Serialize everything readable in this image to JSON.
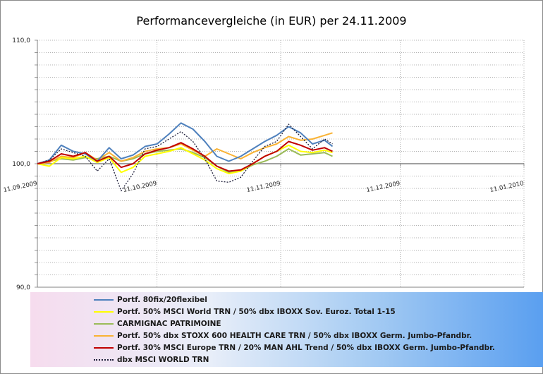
{
  "chart_data": {
    "type": "line",
    "title": "Performancevergleiche (in EUR) per 24.11.2009",
    "ylim": [
      90,
      110
    ],
    "y_ticks": [
      "90,0",
      "100,0",
      "110,0"
    ],
    "x_ticks": [
      "11.09.2009",
      "11.10.2009",
      "11.11.2009",
      "11.12.2009",
      "11.01.2010"
    ],
    "grid": "on",
    "legend_placement": "bottom",
    "dates": [
      "11.09.2009",
      "14.09.2009",
      "17.09.2009",
      "20.09.2009",
      "23.09.2009",
      "26.09.2009",
      "29.09.2009",
      "02.10.2009",
      "05.10.2009",
      "08.10.2009",
      "11.10.2009",
      "14.10.2009",
      "17.10.2009",
      "20.10.2009",
      "23.10.2009",
      "26.10.2009",
      "29.10.2009",
      "01.11.2009",
      "04.11.2009",
      "07.11.2009",
      "10.11.2009",
      "13.11.2009",
      "16.11.2009",
      "19.11.2009",
      "22.11.2009",
      "24.11.2009"
    ],
    "series": [
      {
        "name": "Portf. 80fix/20flexibel",
        "color": "#4f81bd",
        "style": "solid",
        "values": [
          100.0,
          100.3,
          101.5,
          101.0,
          100.8,
          100.2,
          101.3,
          100.4,
          100.7,
          101.4,
          101.6,
          102.4,
          103.3,
          102.8,
          101.8,
          100.6,
          100.2,
          100.6,
          101.2,
          101.8,
          102.3,
          103.0,
          102.5,
          101.6,
          101.9,
          101.4
        ]
      },
      {
        "name": "Portf. 50% MSCI World TRN / 50% dbx IBOXX Sov. Euroz. Total 1-15",
        "color": "#ffff00",
        "style": "solid",
        "values": [
          100.0,
          99.8,
          100.5,
          100.4,
          100.6,
          100.1,
          100.5,
          99.3,
          99.7,
          100.6,
          100.8,
          101.0,
          101.3,
          100.8,
          100.3,
          99.6,
          99.2,
          99.4,
          100.0,
          100.6,
          101.0,
          101.5,
          101.0,
          100.9,
          101.1,
          100.9
        ]
      },
      {
        "name": "CARMIGNAC PATRIMOINE",
        "color": "#9bbb59",
        "style": "solid",
        "values": [
          100.0,
          100.2,
          100.4,
          100.3,
          100.5,
          100.4,
          100.6,
          100.2,
          100.4,
          100.8,
          101.0,
          101.1,
          101.2,
          100.9,
          100.5,
          99.8,
          99.3,
          99.4,
          99.9,
          100.2,
          100.6,
          101.2,
          100.7,
          100.8,
          100.9,
          100.6
        ]
      },
      {
        "name": "Portf. 50% dbx STOXX 600 HEALTH CARE TRN / 50% dbx IBOXX Germ. Jumbo-Pfandbr.",
        "color": "#f9b233",
        "style": "solid",
        "values": [
          100.0,
          100.1,
          100.6,
          100.5,
          100.9,
          100.3,
          100.9,
          100.2,
          100.5,
          101.0,
          101.2,
          101.3,
          101.6,
          101.1,
          100.6,
          101.2,
          100.8,
          100.4,
          100.9,
          101.3,
          101.6,
          102.2,
          101.9,
          102.0,
          102.3,
          102.5
        ]
      },
      {
        "name": "Portf. 30% MSCI Europe TRN / 20% MAN AHL Trend / 50% dbx IBOXX Germ. Jumbo-Pfandbr.",
        "color": "#c00000",
        "style": "solid",
        "values": [
          100.0,
          100.2,
          100.8,
          100.6,
          100.9,
          100.2,
          100.6,
          99.7,
          100.0,
          100.8,
          101.1,
          101.3,
          101.7,
          101.2,
          100.6,
          99.8,
          99.4,
          99.5,
          100.0,
          100.6,
          101.0,
          101.8,
          101.5,
          101.1,
          101.3,
          101.0
        ]
      },
      {
        "name": "dbx MSCI WORLD TRN",
        "color": "#1f1f3a",
        "style": "dotted",
        "values": [
          100.0,
          100.3,
          101.2,
          100.9,
          100.6,
          99.4,
          100.4,
          97.8,
          99.2,
          101.2,
          101.4,
          102.0,
          102.6,
          101.8,
          100.4,
          98.6,
          98.5,
          98.9,
          100.2,
          101.4,
          101.8,
          103.2,
          102.2,
          101.2,
          102.0,
          101.6
        ]
      }
    ]
  }
}
